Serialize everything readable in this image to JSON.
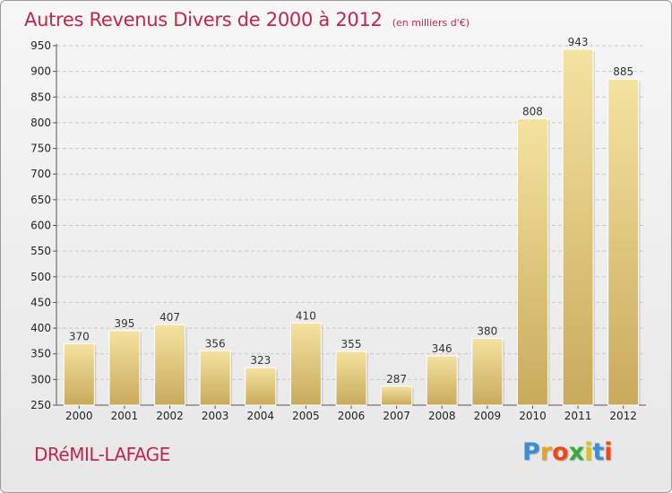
{
  "header": {
    "title": "Autres Revenus Divers de 2000 à 2012",
    "subtitle": "(en milliers d'€)"
  },
  "footer": {
    "commune": "DRéMIL-LAFAGE",
    "logo_letters": [
      "P",
      "r",
      "o",
      "x",
      "i",
      "t",
      "i"
    ],
    "logo_colors": [
      "#3a8fd0",
      "#f0a020",
      "#e84a1a",
      "#3aa83a",
      "#e0c020",
      "#3a8fd0",
      "#e84a1a"
    ]
  },
  "colors": {
    "bar_light": "#f5e2a0",
    "bar_dark": "#c8aa5c",
    "grid": "#c8c8c8",
    "title": "#c2264e"
  },
  "chart_data": {
    "type": "bar",
    "categories": [
      "2000",
      "2001",
      "2002",
      "2003",
      "2004",
      "2005",
      "2006",
      "2007",
      "2008",
      "2009",
      "2010",
      "2011",
      "2012"
    ],
    "values": [
      370,
      395,
      407,
      356,
      323,
      410,
      355,
      287,
      346,
      380,
      808,
      943,
      885
    ],
    "title": "Autres Revenus Divers de 2000 à 2012",
    "subtitle": "(en milliers d'€)",
    "xlabel": "",
    "ylabel": "",
    "ylim": [
      250,
      950
    ],
    "yticks": [
      250,
      300,
      350,
      400,
      450,
      500,
      550,
      600,
      650,
      700,
      750,
      800,
      850,
      900,
      950
    ],
    "grid": true,
    "data_labels": true
  }
}
